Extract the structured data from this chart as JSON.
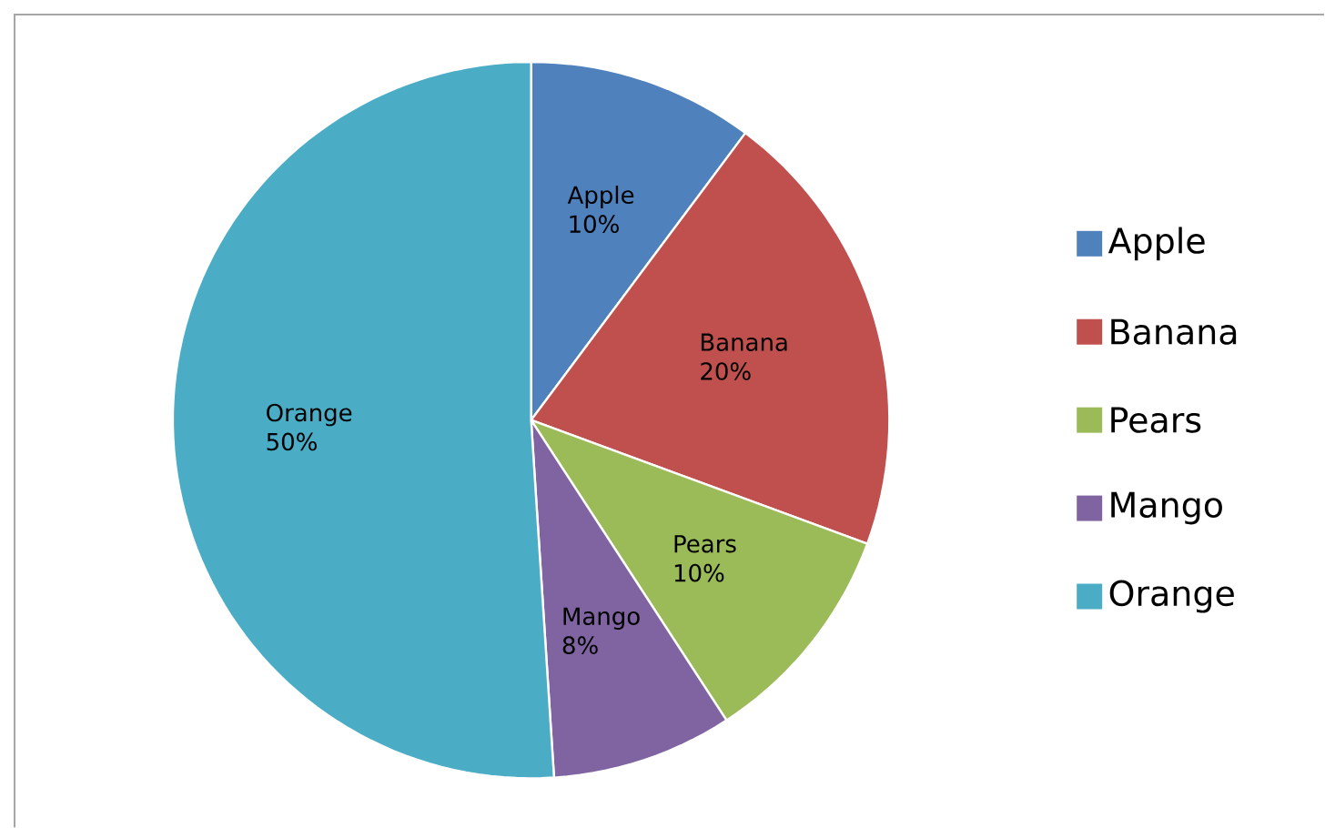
{
  "chart_data": {
    "type": "pie",
    "categories": [
      "Apple",
      "Banana",
      "Pears",
      "Mango",
      "Orange"
    ],
    "values": [
      10,
      20,
      10,
      8,
      50
    ],
    "value_labels": [
      "10%",
      "20%",
      "10%",
      "8%",
      "50%"
    ],
    "colors": [
      "#4f81bd",
      "#c0504d",
      "#9bbb59",
      "#8064a2",
      "#4bacc6"
    ],
    "legend": "right"
  }
}
